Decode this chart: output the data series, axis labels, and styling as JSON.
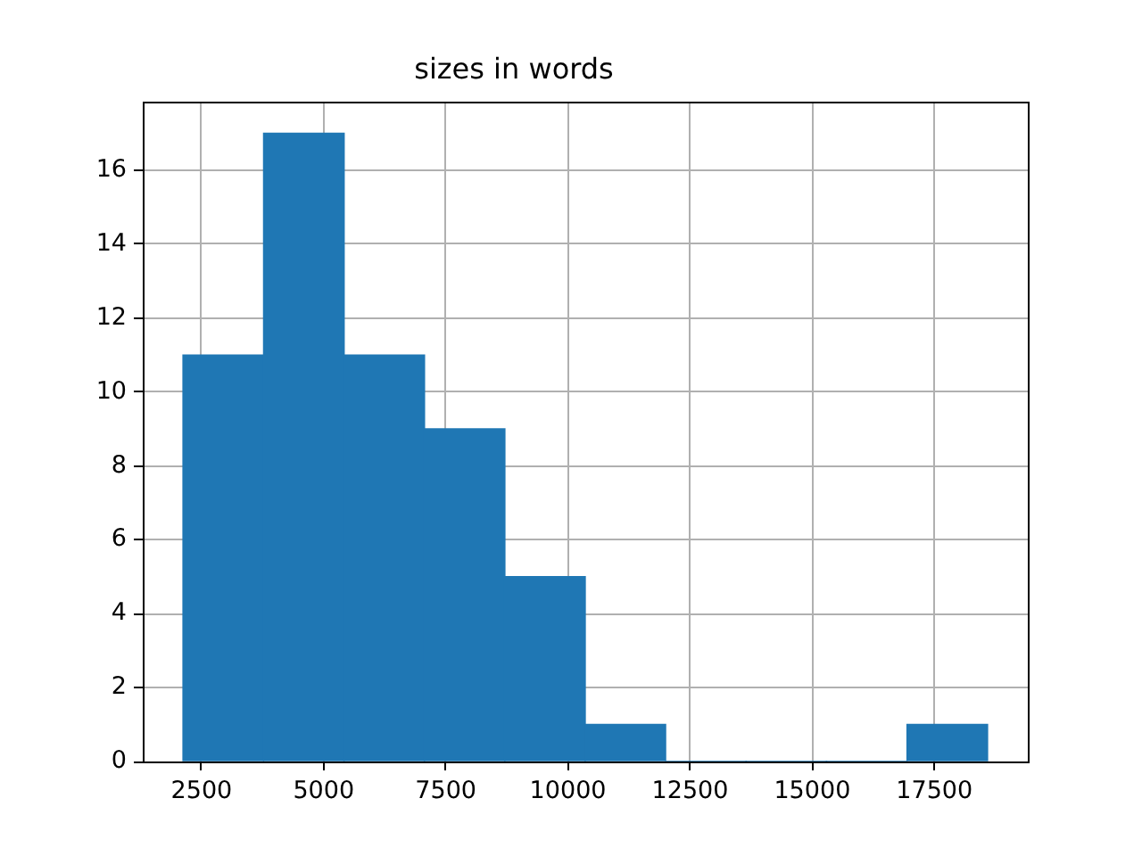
{
  "chart_data": {
    "type": "histogram",
    "title": "sizes in words",
    "bins": [
      2120,
      3770,
      5420,
      7060,
      8710,
      10350,
      12000,
      13650,
      15290,
      16940,
      18590
    ],
    "values": [
      11,
      17,
      11,
      9,
      5,
      1,
      0,
      0,
      0,
      1
    ],
    "color": "#1f77b4",
    "xlim": [
      1297,
      19413
    ],
    "ylim": [
      0,
      17.85
    ],
    "xticks": [
      2500,
      5000,
      7500,
      10000,
      12500,
      15000,
      17500
    ],
    "yticks": [
      0,
      2,
      4,
      6,
      8,
      10,
      12,
      14,
      16
    ],
    "grid": true
  }
}
